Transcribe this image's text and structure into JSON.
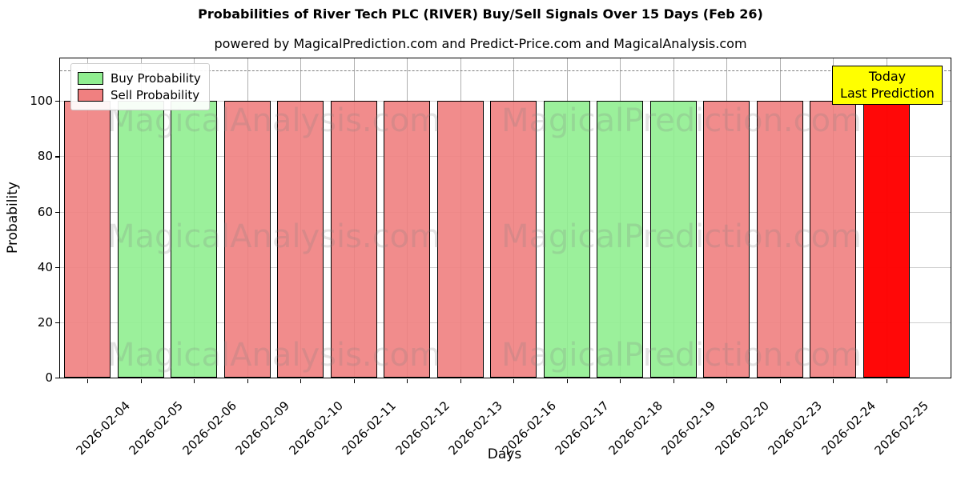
{
  "title": "Probabilities of River Tech PLC (RIVER) Buy/Sell Signals Over 15 Days (Feb 26)",
  "subtitle": "powered by MagicalPrediction.com and Predict-Price.com and MagicalAnalysis.com",
  "axes": {
    "x_label": "Days",
    "y_label": "Probability"
  },
  "legend": {
    "items": [
      {
        "label": "Buy Probability",
        "color": "#90EE90"
      },
      {
        "label": "Sell Probability",
        "color": "#F08080"
      }
    ]
  },
  "annotation": {
    "lines": [
      "Today",
      "Last Prediction"
    ],
    "bg_color": "#FFFF00"
  },
  "watermarks": {
    "left_text": "MagicalAnalysis.com",
    "right_text": "MagicalPrediction.com"
  },
  "chart_data": {
    "type": "bar",
    "title": "Probabilities of River Tech PLC (RIVER) Buy/Sell Signals Over 15 Days (Feb 26)",
    "subtitle": "powered by MagicalPrediction.com and Predict-Price.com and MagicalAnalysis.com",
    "xlabel": "Days",
    "ylabel": "Probability",
    "categories": [
      "2026-02-04",
      "2026-02-05",
      "2026-02-06",
      "2026-02-09",
      "2026-02-10",
      "2026-02-11",
      "2026-02-12",
      "2026-02-13",
      "2026-02-16",
      "2026-02-17",
      "2026-02-18",
      "2026-02-19",
      "2026-02-20",
      "2026-02-23",
      "2026-02-24",
      "2026-02-25"
    ],
    "series": [
      {
        "name": "Buy Probability",
        "color": "#90EE90",
        "values": [
          0,
          100,
          100,
          0,
          0,
          0,
          0,
          0,
          0,
          100,
          100,
          100,
          0,
          0,
          0,
          0
        ]
      },
      {
        "name": "Sell Probability",
        "color": "#F08080",
        "values": [
          100,
          0,
          0,
          100,
          100,
          100,
          100,
          100,
          100,
          0,
          0,
          0,
          100,
          100,
          100,
          100
        ]
      }
    ],
    "signals": [
      "sell",
      "buy",
      "buy",
      "sell",
      "sell",
      "sell",
      "sell",
      "sell",
      "sell",
      "buy",
      "buy",
      "buy",
      "sell",
      "sell",
      "sell",
      "sell"
    ],
    "bar_values": [
      100,
      100,
      100,
      100,
      100,
      100,
      100,
      100,
      100,
      100,
      100,
      100,
      100,
      100,
      100,
      100
    ],
    "highlight_last_bar": {
      "index": 15,
      "color": "#FF0000",
      "label": "Today Last Prediction"
    },
    "ylim": [
      0,
      115.4
    ],
    "yticks": [
      0,
      20,
      40,
      60,
      80,
      100
    ],
    "dashed_line_y": 111,
    "grid": true,
    "legend_position": "upper left",
    "colors": {
      "buy": "#90EE90",
      "sell": "#F08080",
      "today": "#FF0000",
      "edge": "#000000",
      "grid": "#b0b0b0",
      "dashed_line": "#808080",
      "annotation_bg": "#FFFF00",
      "watermark": "#808080"
    }
  }
}
